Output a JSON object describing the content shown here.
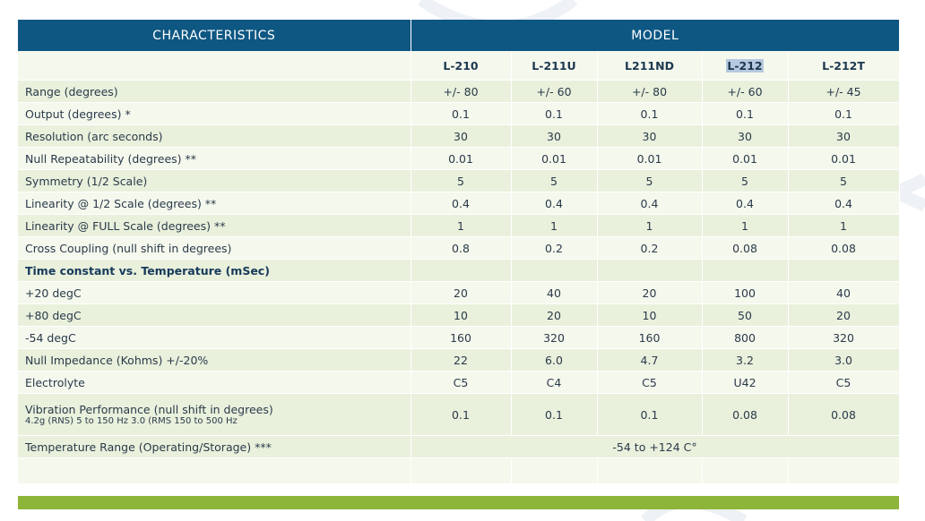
{
  "header": {
    "characteristics": "CHARACTERISTICS",
    "model": "MODEL"
  },
  "models": [
    "L-210",
    "L-211U",
    "L211ND",
    "L-212",
    "L-212T"
  ],
  "highlighted_model": "L-212",
  "rows": [
    {
      "label": "Range (degrees)",
      "values": [
        "+/- 80",
        "+/- 60",
        "+/- 80",
        "+/- 60",
        "+/- 45"
      ]
    },
    {
      "label": "Output (degrees) *",
      "values": [
        "0.1",
        "0.1",
        "0.1",
        "0.1",
        "0.1"
      ]
    },
    {
      "label": "Resolution (arc seconds)",
      "values": [
        "30",
        "30",
        "30",
        "30",
        "30"
      ]
    },
    {
      "label": "Null Repeatability (degrees) **",
      "values": [
        "0.01",
        "0.01",
        "0.01",
        "0.01",
        "0.01"
      ]
    },
    {
      "label": "Symmetry (1/2 Scale)",
      "values": [
        "5",
        "5",
        "5",
        "5",
        "5"
      ]
    },
    {
      "label": "Linearity @ 1/2 Scale (degrees) **",
      "values": [
        "0.4",
        "0.4",
        "0.4",
        "0.4",
        "0.4"
      ]
    },
    {
      "label": "Linearity @ FULL Scale  (degrees) **",
      "values": [
        "1",
        "1",
        "1",
        "1",
        "1"
      ]
    },
    {
      "label": "Cross Coupling (null shift in degrees)",
      "values": [
        "0.8",
        "0.2",
        "0.2",
        "0.08",
        "0.08"
      ]
    },
    {
      "label": "Time constant vs. Temperature (mSec)",
      "values": [
        "",
        "",
        "",
        "",
        ""
      ]
    },
    {
      "label": "+20 degC",
      "values": [
        "20",
        "40",
        "20",
        "100",
        "40"
      ]
    },
    {
      "label": "+80 degC",
      "values": [
        "10",
        "20",
        "10",
        "50",
        "20"
      ]
    },
    {
      "label": "-54 degC",
      "values": [
        "160",
        "320",
        "160",
        "800",
        "320"
      ]
    },
    {
      "label": "Null Impedance (Kohms) +/-20%",
      "values": [
        "22",
        "6.0",
        "4.7",
        "3.2",
        "3.0"
      ]
    },
    {
      "label": "Electrolyte",
      "values": [
        "C5",
        "C4",
        "C5",
        "U42",
        "C5"
      ]
    },
    {
      "label": "Vibration Performance (null shift in degrees)",
      "sublabel": "4.2g (RNS) 5 to 150 Hz 3.0 (RMS 150 to 500 Hz",
      "values": [
        "0.1",
        "0.1",
        "0.1",
        "0.08",
        "0.08"
      ]
    }
  ],
  "temperature_range": {
    "label": "Temperature Range (Operating/Storage) ***",
    "value": "-54 to +124 C°"
  }
}
